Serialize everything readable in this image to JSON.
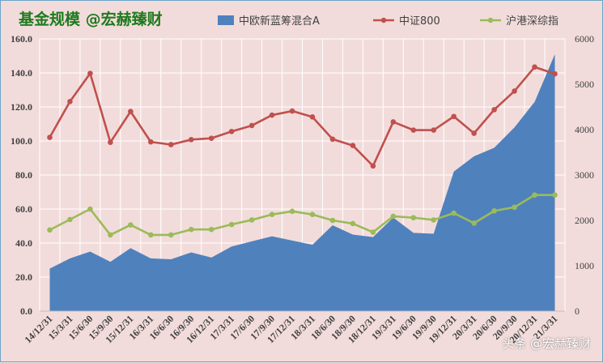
{
  "header": {
    "title": "基金规模 @宏赫臻财",
    "watermark": "头条 @宏赫臻财"
  },
  "colors": {
    "area": "#4f81bd",
    "index_a": "#c0504d",
    "index_b": "#9bbb59",
    "background": "#f2dcdb",
    "grid": "#ffffff",
    "title": "#1e7a1e"
  },
  "chart_data": {
    "type": "area+line",
    "legend_position": "top",
    "grid": true,
    "x": [
      "14/12/31",
      "15/3/31",
      "15/6/30",
      "15/9/30",
      "15/12/31",
      "16/3/31",
      "16/6/30",
      "16/9/30",
      "16/12/31",
      "17/3/31",
      "17/6/30",
      "17/9/30",
      "17/12/31",
      "18/3/31",
      "18/6/30",
      "18/9/30",
      "18/12/31",
      "19/3/31",
      "19/6/30",
      "19/9/30",
      "19/12/31",
      "20/3/31",
      "20/6/30",
      "20/9/30",
      "20/12/31",
      "21/3/31"
    ],
    "y_left": {
      "ylim": [
        0,
        160
      ],
      "ticks": [
        "0.0",
        "20.0",
        "40.0",
        "60.0",
        "80.0",
        "100.0",
        "120.0",
        "140.0",
        "160.0"
      ]
    },
    "y_right": {
      "ylim": [
        0,
        6000
      ],
      "ticks": [
        "0",
        "1000",
        "2000",
        "3000",
        "4000",
        "5000",
        "6000"
      ]
    },
    "series": [
      {
        "name": "中欧新蓝筹混合A",
        "type": "area",
        "axis": "left",
        "values": [
          25,
          31,
          35,
          29,
          37,
          31,
          30.5,
          34.5,
          31.5,
          38,
          41,
          44,
          41.5,
          39,
          50.5,
          45,
          43.5,
          55,
          46,
          45.5,
          82,
          91,
          96,
          108,
          123,
          151
        ]
      },
      {
        "name": "中证800",
        "type": "line",
        "axis": "right",
        "values": [
          3830,
          4620,
          5240,
          3720,
          4400,
          3730,
          3670,
          3780,
          3810,
          3960,
          4090,
          4320,
          4410,
          4280,
          3790,
          3650,
          3200,
          4170,
          3990,
          3990,
          4290,
          3920,
          4440,
          4850,
          5380,
          5230
        ]
      },
      {
        "name": "沪港深综指",
        "type": "line",
        "axis": "right",
        "values": [
          1790,
          2020,
          2250,
          1680,
          1900,
          1680,
          1680,
          1800,
          1800,
          1910,
          2010,
          2130,
          2200,
          2130,
          2000,
          1930,
          1740,
          2090,
          2060,
          2010,
          2160,
          1940,
          2210,
          2290,
          2560,
          2560
        ]
      }
    ]
  }
}
